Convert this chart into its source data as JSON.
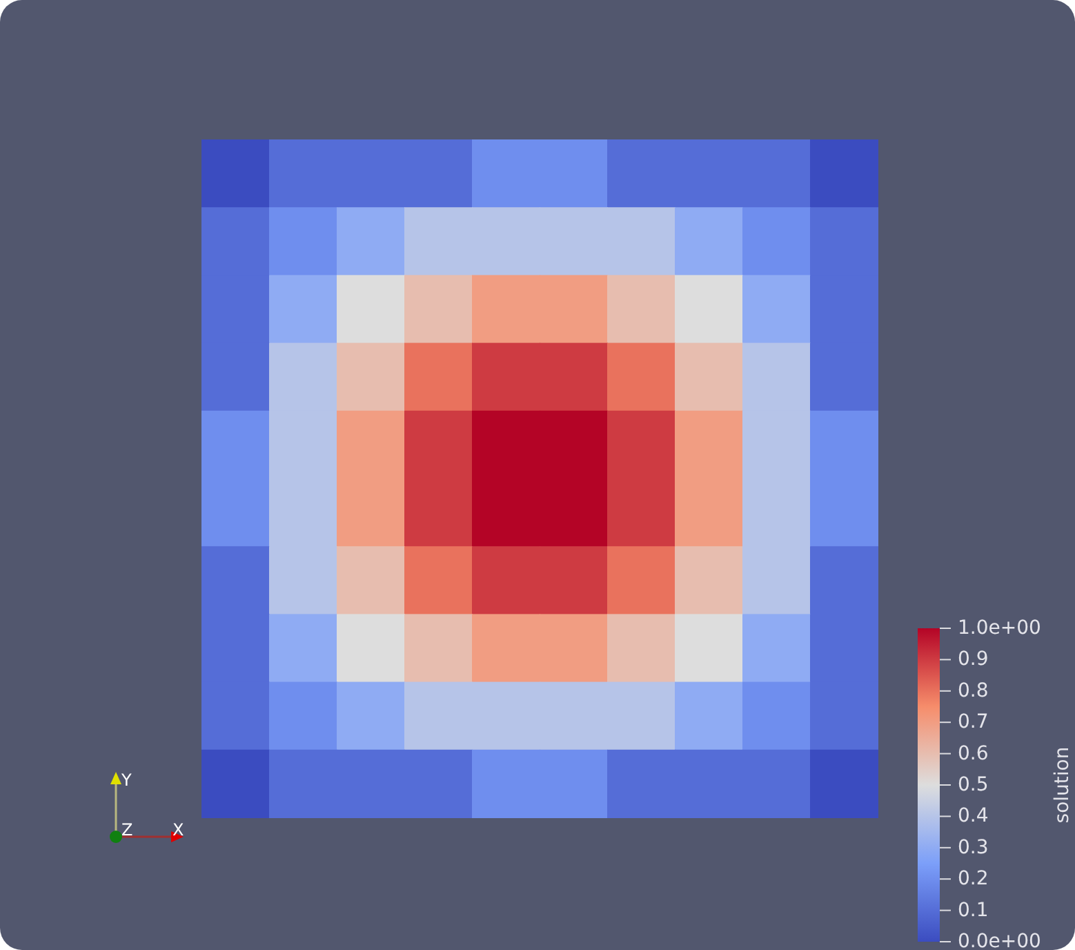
{
  "chart_data": {
    "type": "heatmap",
    "clabel": "solution",
    "categories": [
      null,
      null,
      null,
      null,
      null,
      null,
      null,
      null,
      null,
      null
    ],
    "y_categories": [
      null,
      null,
      null,
      null,
      null,
      null,
      null,
      null,
      null,
      null
    ],
    "cells": [
      [
        0.0,
        0.1,
        0.1,
        0.1,
        0.2,
        0.2,
        0.1,
        0.1,
        0.1,
        0.0
      ],
      [
        0.1,
        0.2,
        0.3,
        0.4,
        0.4,
        0.4,
        0.4,
        0.3,
        0.2,
        0.1
      ],
      [
        0.1,
        0.3,
        0.5,
        0.6,
        0.7,
        0.7,
        0.6,
        0.5,
        0.3,
        0.1
      ],
      [
        0.1,
        0.4,
        0.6,
        0.8,
        0.9,
        0.9,
        0.8,
        0.6,
        0.4,
        0.1
      ],
      [
        0.2,
        0.4,
        0.7,
        0.9,
        1.0,
        1.0,
        0.9,
        0.7,
        0.4,
        0.2
      ],
      [
        0.2,
        0.4,
        0.7,
        0.9,
        1.0,
        1.0,
        0.9,
        0.7,
        0.4,
        0.2
      ],
      [
        0.1,
        0.4,
        0.6,
        0.8,
        0.9,
        0.9,
        0.8,
        0.6,
        0.4,
        0.1
      ],
      [
        0.1,
        0.3,
        0.5,
        0.6,
        0.7,
        0.7,
        0.6,
        0.5,
        0.3,
        0.1
      ],
      [
        0.1,
        0.2,
        0.3,
        0.4,
        0.4,
        0.4,
        0.4,
        0.3,
        0.2,
        0.1
      ],
      [
        0.0,
        0.1,
        0.1,
        0.1,
        0.2,
        0.2,
        0.1,
        0.1,
        0.1,
        0.0
      ]
    ],
    "clim": [
      0,
      1
    ],
    "cticks": [
      {
        "value": 0,
        "label": "0.0e+00"
      },
      0.1,
      0.2,
      0.3,
      0.4,
      0.5,
      0.6,
      0.7,
      0.8,
      0.9,
      {
        "value": 1,
        "label": "1.0e+00"
      }
    ],
    "annotations": [
      "Y",
      "Z",
      "X"
    ]
  }
}
